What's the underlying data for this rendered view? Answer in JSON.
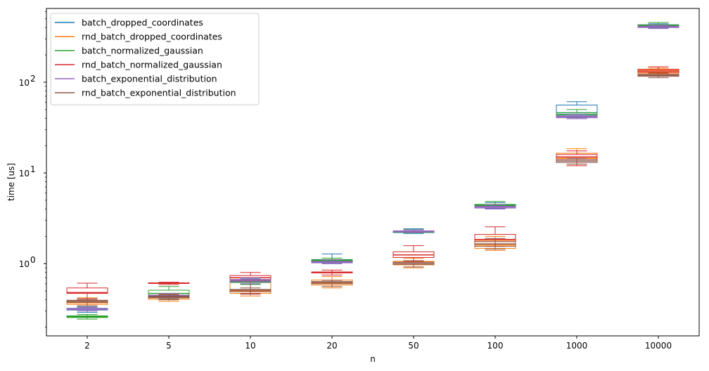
{
  "chart_data": {
    "type": "box",
    "xlabel": "n",
    "ylabel": "time [us]",
    "yscale": "log",
    "ylim": [
      0.16,
      650
    ],
    "categories": [
      "2",
      "5",
      "10",
      "20",
      "50",
      "100",
      "1000",
      "10000"
    ],
    "y_ticks": [
      {
        "value": 1,
        "base": "10",
        "exp": "0"
      },
      {
        "value": 10,
        "base": "10",
        "exp": "1"
      },
      {
        "value": 100,
        "base": "10",
        "exp": "2"
      }
    ],
    "legend": {
      "placement": "upper-left",
      "frame": true
    },
    "grid": false,
    "series": [
      {
        "name": "batch_dropped_coordinates",
        "color": "#1f77b4",
        "boxes": [
          {
            "wlo": 0.29,
            "q1": 0.308,
            "med": 0.315,
            "q3": 0.322,
            "whi": 0.335
          },
          {
            "wlo": 0.41,
            "q1": 0.425,
            "med": 0.435,
            "q3": 0.445,
            "whi": 0.46
          },
          {
            "wlo": 0.6,
            "q1": 0.62,
            "med": 0.64,
            "q3": 0.66,
            "whi": 0.68
          },
          {
            "wlo": 1.0,
            "q1": 1.03,
            "med": 1.06,
            "q3": 1.1,
            "whi": 1.28
          },
          {
            "wlo": 2.15,
            "q1": 2.2,
            "med": 2.24,
            "q3": 2.3,
            "whi": 2.42
          },
          {
            "wlo": 4.05,
            "q1": 4.2,
            "med": 4.28,
            "q3": 4.45,
            "whi": 4.7
          },
          {
            "wlo": 41.0,
            "q1": 43.5,
            "med": 46.0,
            "q3": 56.0,
            "whi": 61.0
          },
          {
            "wlo": 395,
            "q1": 405,
            "med": 415,
            "q3": 425,
            "whi": 440
          }
        ]
      },
      {
        "name": "rnd_batch_dropped_coordinates",
        "color": "#ff7f0e",
        "boxes": [
          {
            "wlo": 0.33,
            "q1": 0.355,
            "med": 0.37,
            "q3": 0.39,
            "whi": 0.42
          },
          {
            "wlo": 0.385,
            "q1": 0.405,
            "med": 0.42,
            "q3": 0.44,
            "whi": 0.46
          },
          {
            "wlo": 0.44,
            "q1": 0.47,
            "med": 0.5,
            "q3": 0.62,
            "whi": 0.7
          },
          {
            "wlo": 0.54,
            "q1": 0.58,
            "med": 0.61,
            "q3": 0.66,
            "whi": 0.72
          },
          {
            "wlo": 0.9,
            "q1": 0.97,
            "med": 1.01,
            "q3": 1.06,
            "whi": 1.15
          },
          {
            "wlo": 1.4,
            "q1": 1.47,
            "med": 1.6,
            "q3": 1.8,
            "whi": 2.0
          },
          {
            "wlo": 12.5,
            "q1": 13.5,
            "med": 14.5,
            "q3": 16.5,
            "whi": 18.5
          },
          {
            "wlo": 118,
            "q1": 124,
            "med": 129,
            "q3": 136,
            "whi": 143
          }
        ]
      },
      {
        "name": "batch_normalized_gaussian",
        "color": "#2ca02c",
        "boxes": [
          {
            "wlo": 0.245,
            "q1": 0.255,
            "med": 0.26,
            "q3": 0.266,
            "whi": 0.275
          },
          {
            "wlo": 0.43,
            "q1": 0.45,
            "med": 0.47,
            "q3": 0.51,
            "whi": 0.56
          },
          {
            "wlo": 0.59,
            "q1": 0.62,
            "med": 0.64,
            "q3": 0.66,
            "whi": 0.7
          },
          {
            "wlo": 1.02,
            "q1": 1.05,
            "med": 1.08,
            "q3": 1.11,
            "whi": 1.15
          },
          {
            "wlo": 2.18,
            "q1": 2.22,
            "med": 2.26,
            "q3": 2.3,
            "whi": 2.38
          },
          {
            "wlo": 4.2,
            "q1": 4.3,
            "med": 4.38,
            "q3": 4.5,
            "whi": 4.85
          },
          {
            "wlo": 40.5,
            "q1": 42.5,
            "med": 44.0,
            "q3": 46.0,
            "whi": 50.0
          },
          {
            "wlo": 400,
            "q1": 412,
            "med": 420,
            "q3": 430,
            "whi": 455
          }
        ]
      },
      {
        "name": "rnd_batch_normalized_gaussian",
        "color": "#d62728",
        "boxes": [
          {
            "wlo": 0.41,
            "q1": 0.47,
            "med": 0.48,
            "q3": 0.54,
            "whi": 0.61
          },
          {
            "wlo": 0.59,
            "q1": 0.605,
            "med": 0.61,
            "q3": 0.615,
            "whi": 0.625
          },
          {
            "wlo": 0.47,
            "q1": 0.66,
            "med": 0.7,
            "q3": 0.74,
            "whi": 0.8
          },
          {
            "wlo": 0.75,
            "q1": 0.79,
            "med": 0.8,
            "q3": 0.81,
            "whi": 0.85
          },
          {
            "wlo": 1.05,
            "q1": 1.17,
            "med": 1.25,
            "q3": 1.35,
            "whi": 1.58
          },
          {
            "wlo": 1.55,
            "q1": 1.75,
            "med": 1.85,
            "q3": 2.1,
            "whi": 2.55
          },
          {
            "wlo": 12.0,
            "q1": 14.0,
            "med": 15.0,
            "q3": 16.0,
            "whi": 17.5
          },
          {
            "wlo": 118,
            "q1": 128,
            "med": 133,
            "q3": 139,
            "whi": 148
          }
        ]
      },
      {
        "name": "batch_exponential_distribution",
        "color": "#9467bd",
        "boxes": [
          {
            "wlo": 0.3,
            "q1": 0.31,
            "med": 0.315,
            "q3": 0.32,
            "whi": 0.33
          },
          {
            "wlo": 0.42,
            "q1": 0.435,
            "med": 0.44,
            "q3": 0.45,
            "whi": 0.47
          },
          {
            "wlo": 0.6,
            "q1": 0.63,
            "med": 0.65,
            "q3": 0.67,
            "whi": 0.7
          },
          {
            "wlo": 1.0,
            "q1": 1.02,
            "med": 1.04,
            "q3": 1.06,
            "whi": 1.1
          },
          {
            "wlo": 2.2,
            "q1": 2.24,
            "med": 2.27,
            "q3": 2.3,
            "whi": 2.36
          },
          {
            "wlo": 4.0,
            "q1": 4.1,
            "med": 4.2,
            "q3": 4.3,
            "whi": 4.45
          },
          {
            "wlo": 39.5,
            "q1": 40.5,
            "med": 41.5,
            "q3": 42.5,
            "whi": 44.0
          },
          {
            "wlo": 390,
            "q1": 400,
            "med": 408,
            "q3": 415,
            "whi": 425
          }
        ]
      },
      {
        "name": "rnd_batch_exponential_distribution",
        "color": "#8c564b",
        "boxes": [
          {
            "wlo": 0.345,
            "q1": 0.375,
            "med": 0.385,
            "q3": 0.395,
            "whi": 0.405
          },
          {
            "wlo": 0.4,
            "q1": 0.42,
            "med": 0.43,
            "q3": 0.44,
            "whi": 0.455
          },
          {
            "wlo": 0.46,
            "q1": 0.49,
            "med": 0.51,
            "q3": 0.52,
            "whi": 0.54
          },
          {
            "wlo": 0.56,
            "q1": 0.6,
            "med": 0.62,
            "q3": 0.635,
            "whi": 0.655
          },
          {
            "wlo": 0.92,
            "q1": 0.98,
            "med": 1.01,
            "q3": 1.04,
            "whi": 1.08
          },
          {
            "wlo": 1.45,
            "q1": 1.55,
            "med": 1.65,
            "q3": 1.75,
            "whi": 1.9
          },
          {
            "wlo": 12.5,
            "q1": 13.0,
            "med": 13.5,
            "q3": 14.0,
            "whi": 14.5
          },
          {
            "wlo": 112,
            "q1": 116,
            "med": 119,
            "q3": 122,
            "whi": 126
          }
        ]
      }
    ]
  }
}
